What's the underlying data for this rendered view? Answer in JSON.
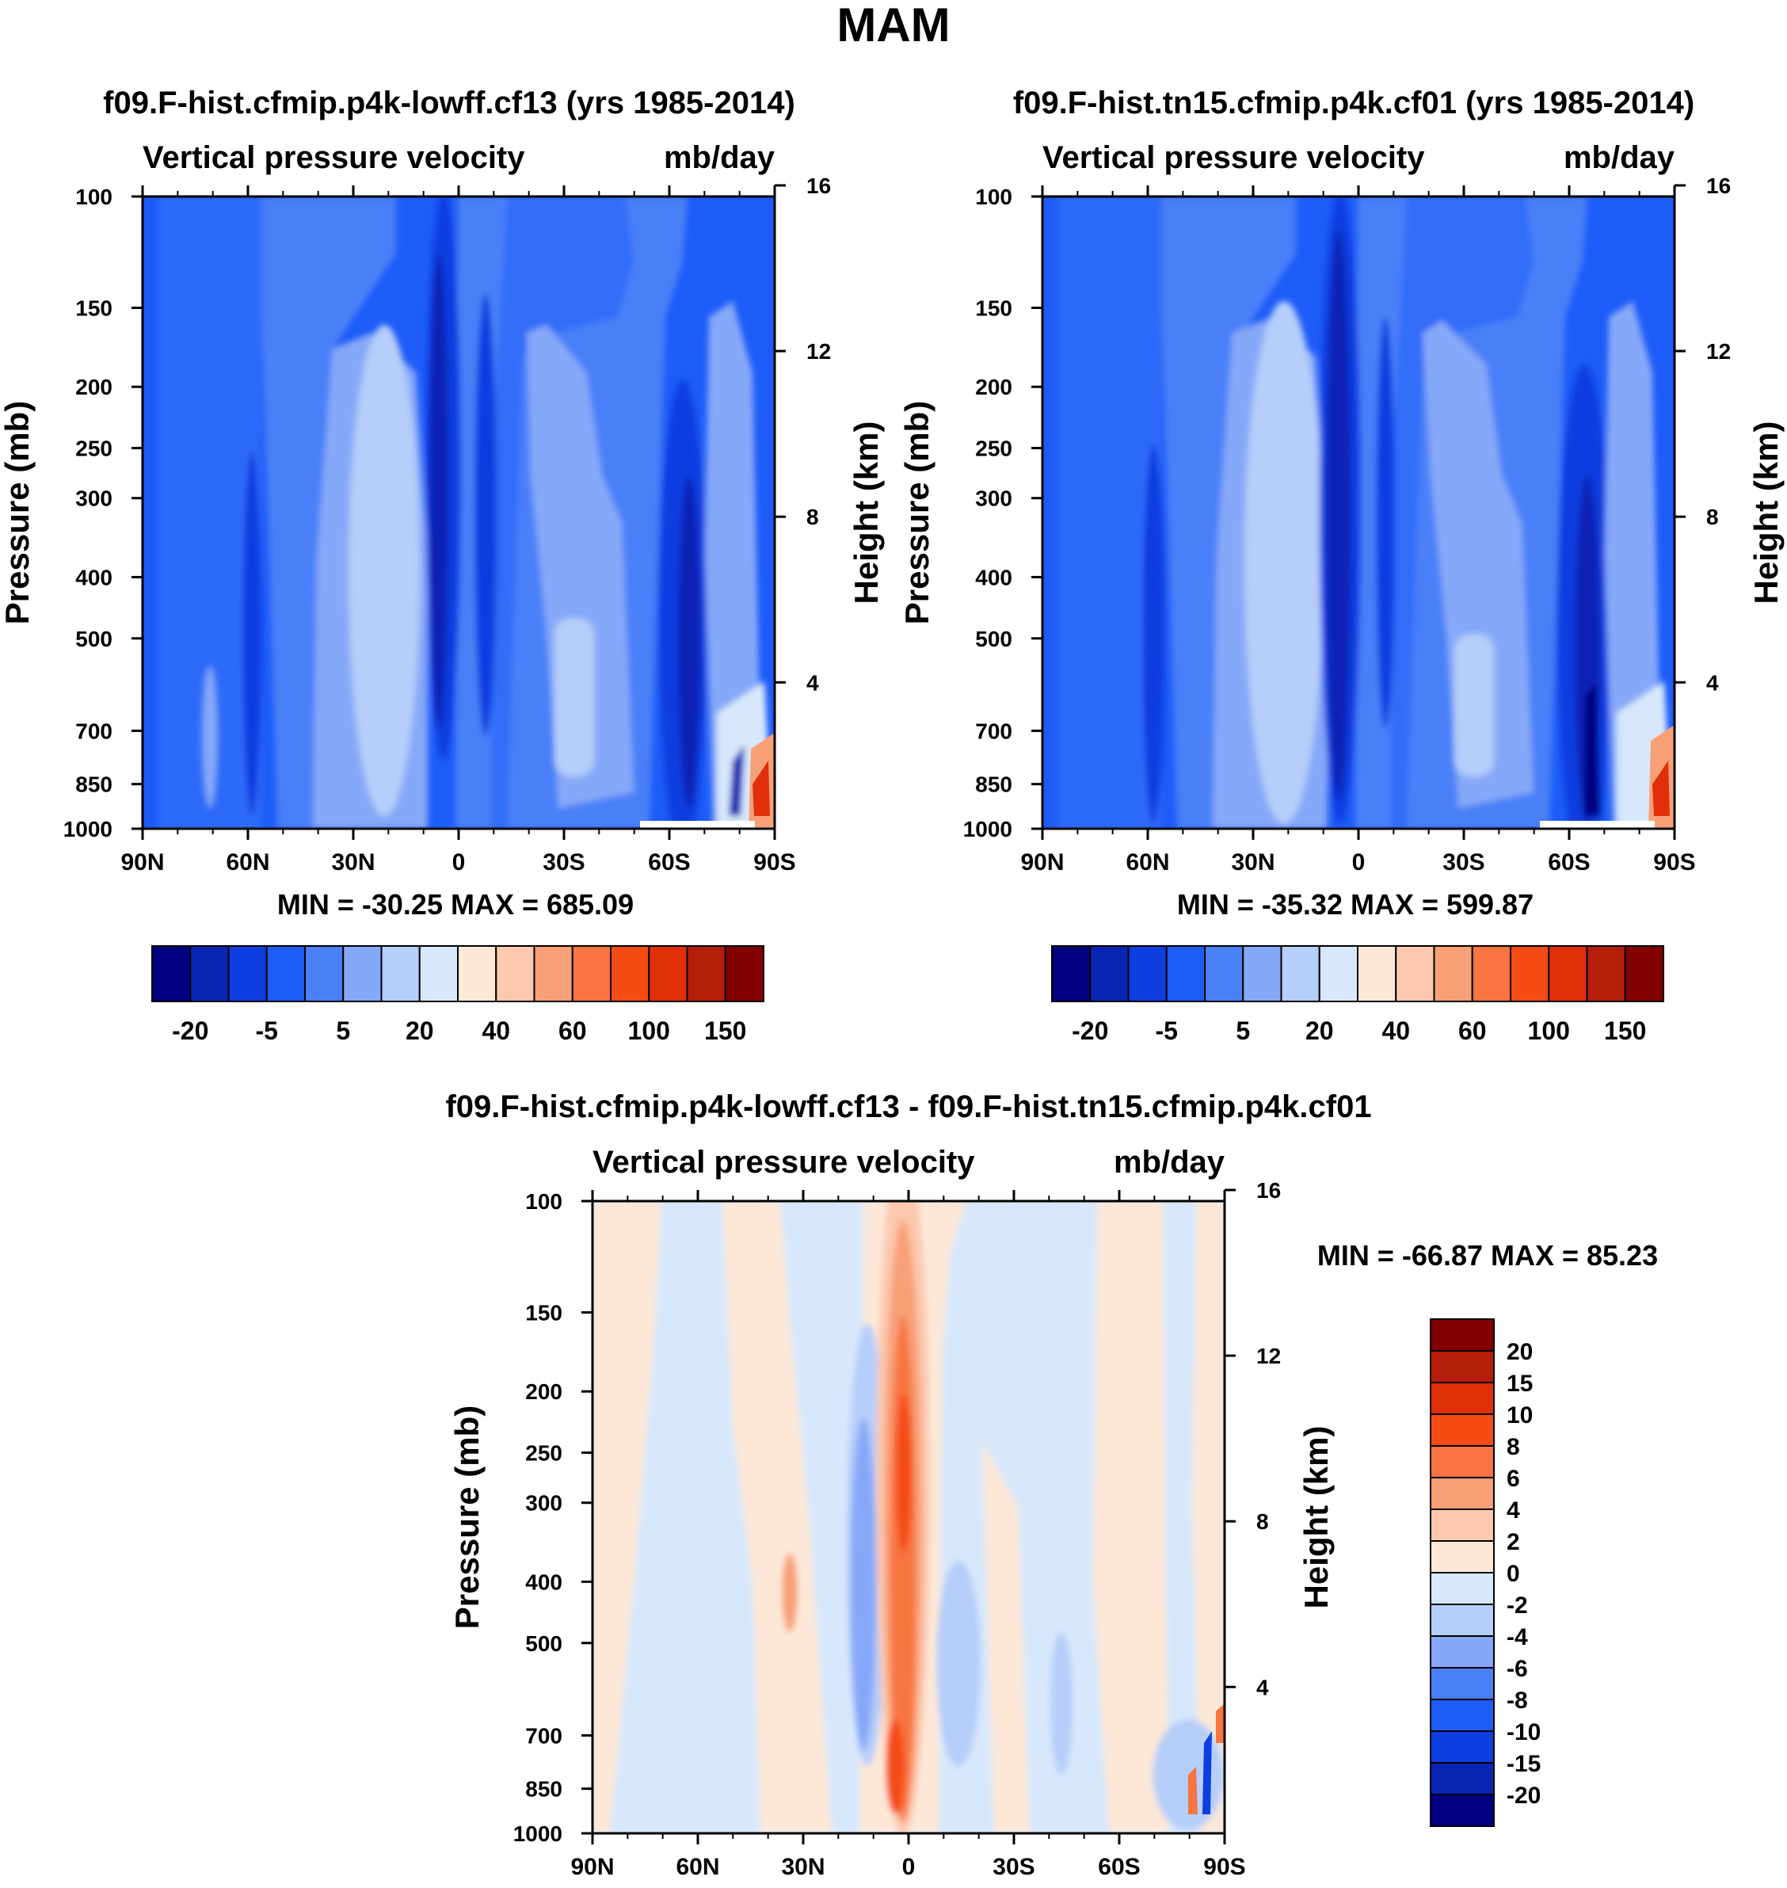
{
  "figure": {
    "title": "MAM"
  },
  "chart_data": [
    {
      "type": "heatmap",
      "panel": "top-left",
      "title": "f09.F-hist.cfmip.p4k-lowff.cf13 (yrs 1985-2014)",
      "variable_label": "Vertical pressure velocity",
      "units": "mb/day",
      "ylabel": "Pressure (mb)",
      "y2label": "Height (km)",
      "x_ticks": [
        "90N",
        "60N",
        "30N",
        "0",
        "30S",
        "60S",
        "90S"
      ],
      "y_ticks": [
        "100",
        "150",
        "200",
        "250",
        "300",
        "400",
        "500",
        "700",
        "850",
        "1000"
      ],
      "y2_ticks": [
        "16",
        "12",
        "8",
        "4"
      ],
      "stats": "MIN = -30.25  MAX = 685.09",
      "colorbar": {
        "orientation": "horizontal",
        "colors": [
          "#000080",
          "#0a24b4",
          "#0c3ee0",
          "#1e5cf8",
          "#4a80f8",
          "#86a8f8",
          "#b6cefa",
          "#d8e8fc",
          "#fde8d8",
          "#fcc8ae",
          "#f8a078",
          "#f87440",
          "#f44c14",
          "#e0300a",
          "#b41e0a",
          "#820000"
        ],
        "tick_labels": [
          "-20",
          "-5",
          "5",
          "20",
          "40",
          "60",
          "100",
          "150"
        ]
      }
    },
    {
      "type": "heatmap",
      "panel": "top-right",
      "title": "f09.F-hist.tn15.cfmip.p4k.cf01 (yrs 1985-2014)",
      "variable_label": "Vertical pressure velocity",
      "units": "mb/day",
      "ylabel": "Pressure (mb)",
      "y2label": "Height (km)",
      "x_ticks": [
        "90N",
        "60N",
        "30N",
        "0",
        "30S",
        "60S",
        "90S"
      ],
      "y_ticks": [
        "100",
        "150",
        "200",
        "250",
        "300",
        "400",
        "500",
        "700",
        "850",
        "1000"
      ],
      "y2_ticks": [
        "16",
        "12",
        "8",
        "4"
      ],
      "stats": "MIN = -35.32  MAX = 599.87",
      "colorbar": {
        "orientation": "horizontal",
        "colors": [
          "#000080",
          "#0a24b4",
          "#0c3ee0",
          "#1e5cf8",
          "#4a80f8",
          "#86a8f8",
          "#b6cefa",
          "#d8e8fc",
          "#fde8d8",
          "#fcc8ae",
          "#f8a078",
          "#f87440",
          "#f44c14",
          "#e0300a",
          "#b41e0a",
          "#820000"
        ],
        "tick_labels": [
          "-20",
          "-5",
          "5",
          "20",
          "40",
          "60",
          "100",
          "150"
        ]
      }
    },
    {
      "type": "heatmap",
      "panel": "bottom",
      "title": "f09.F-hist.cfmip.p4k-lowff.cf13 - f09.F-hist.tn15.cfmip.p4k.cf01",
      "variable_label": "Vertical pressure velocity",
      "units": "mb/day",
      "ylabel": "Pressure (mb)",
      "y2label": "Height (km)",
      "x_ticks": [
        "90N",
        "60N",
        "30N",
        "0",
        "30S",
        "60S",
        "90S"
      ],
      "y_ticks": [
        "100",
        "150",
        "200",
        "250",
        "300",
        "400",
        "500",
        "700",
        "850",
        "1000"
      ],
      "y2_ticks": [
        "16",
        "12",
        "8",
        "4"
      ],
      "stats": "MIN = -66.87  MAX =  85.23",
      "colorbar": {
        "orientation": "vertical",
        "colors": [
          "#820000",
          "#b41e0a",
          "#e0300a",
          "#f44c14",
          "#f87440",
          "#f8a078",
          "#fcc8ae",
          "#fde8d8",
          "#d8e8fc",
          "#b6cefa",
          "#86a8f8",
          "#4a80f8",
          "#1e5cf8",
          "#0c3ee0",
          "#0a24b4",
          "#000080"
        ],
        "tick_labels": [
          "20",
          "15",
          "10",
          "8",
          "6",
          "4",
          "2",
          "0",
          "-2",
          "-4",
          "-6",
          "-8",
          "-10",
          "-15",
          "-20"
        ]
      }
    }
  ]
}
